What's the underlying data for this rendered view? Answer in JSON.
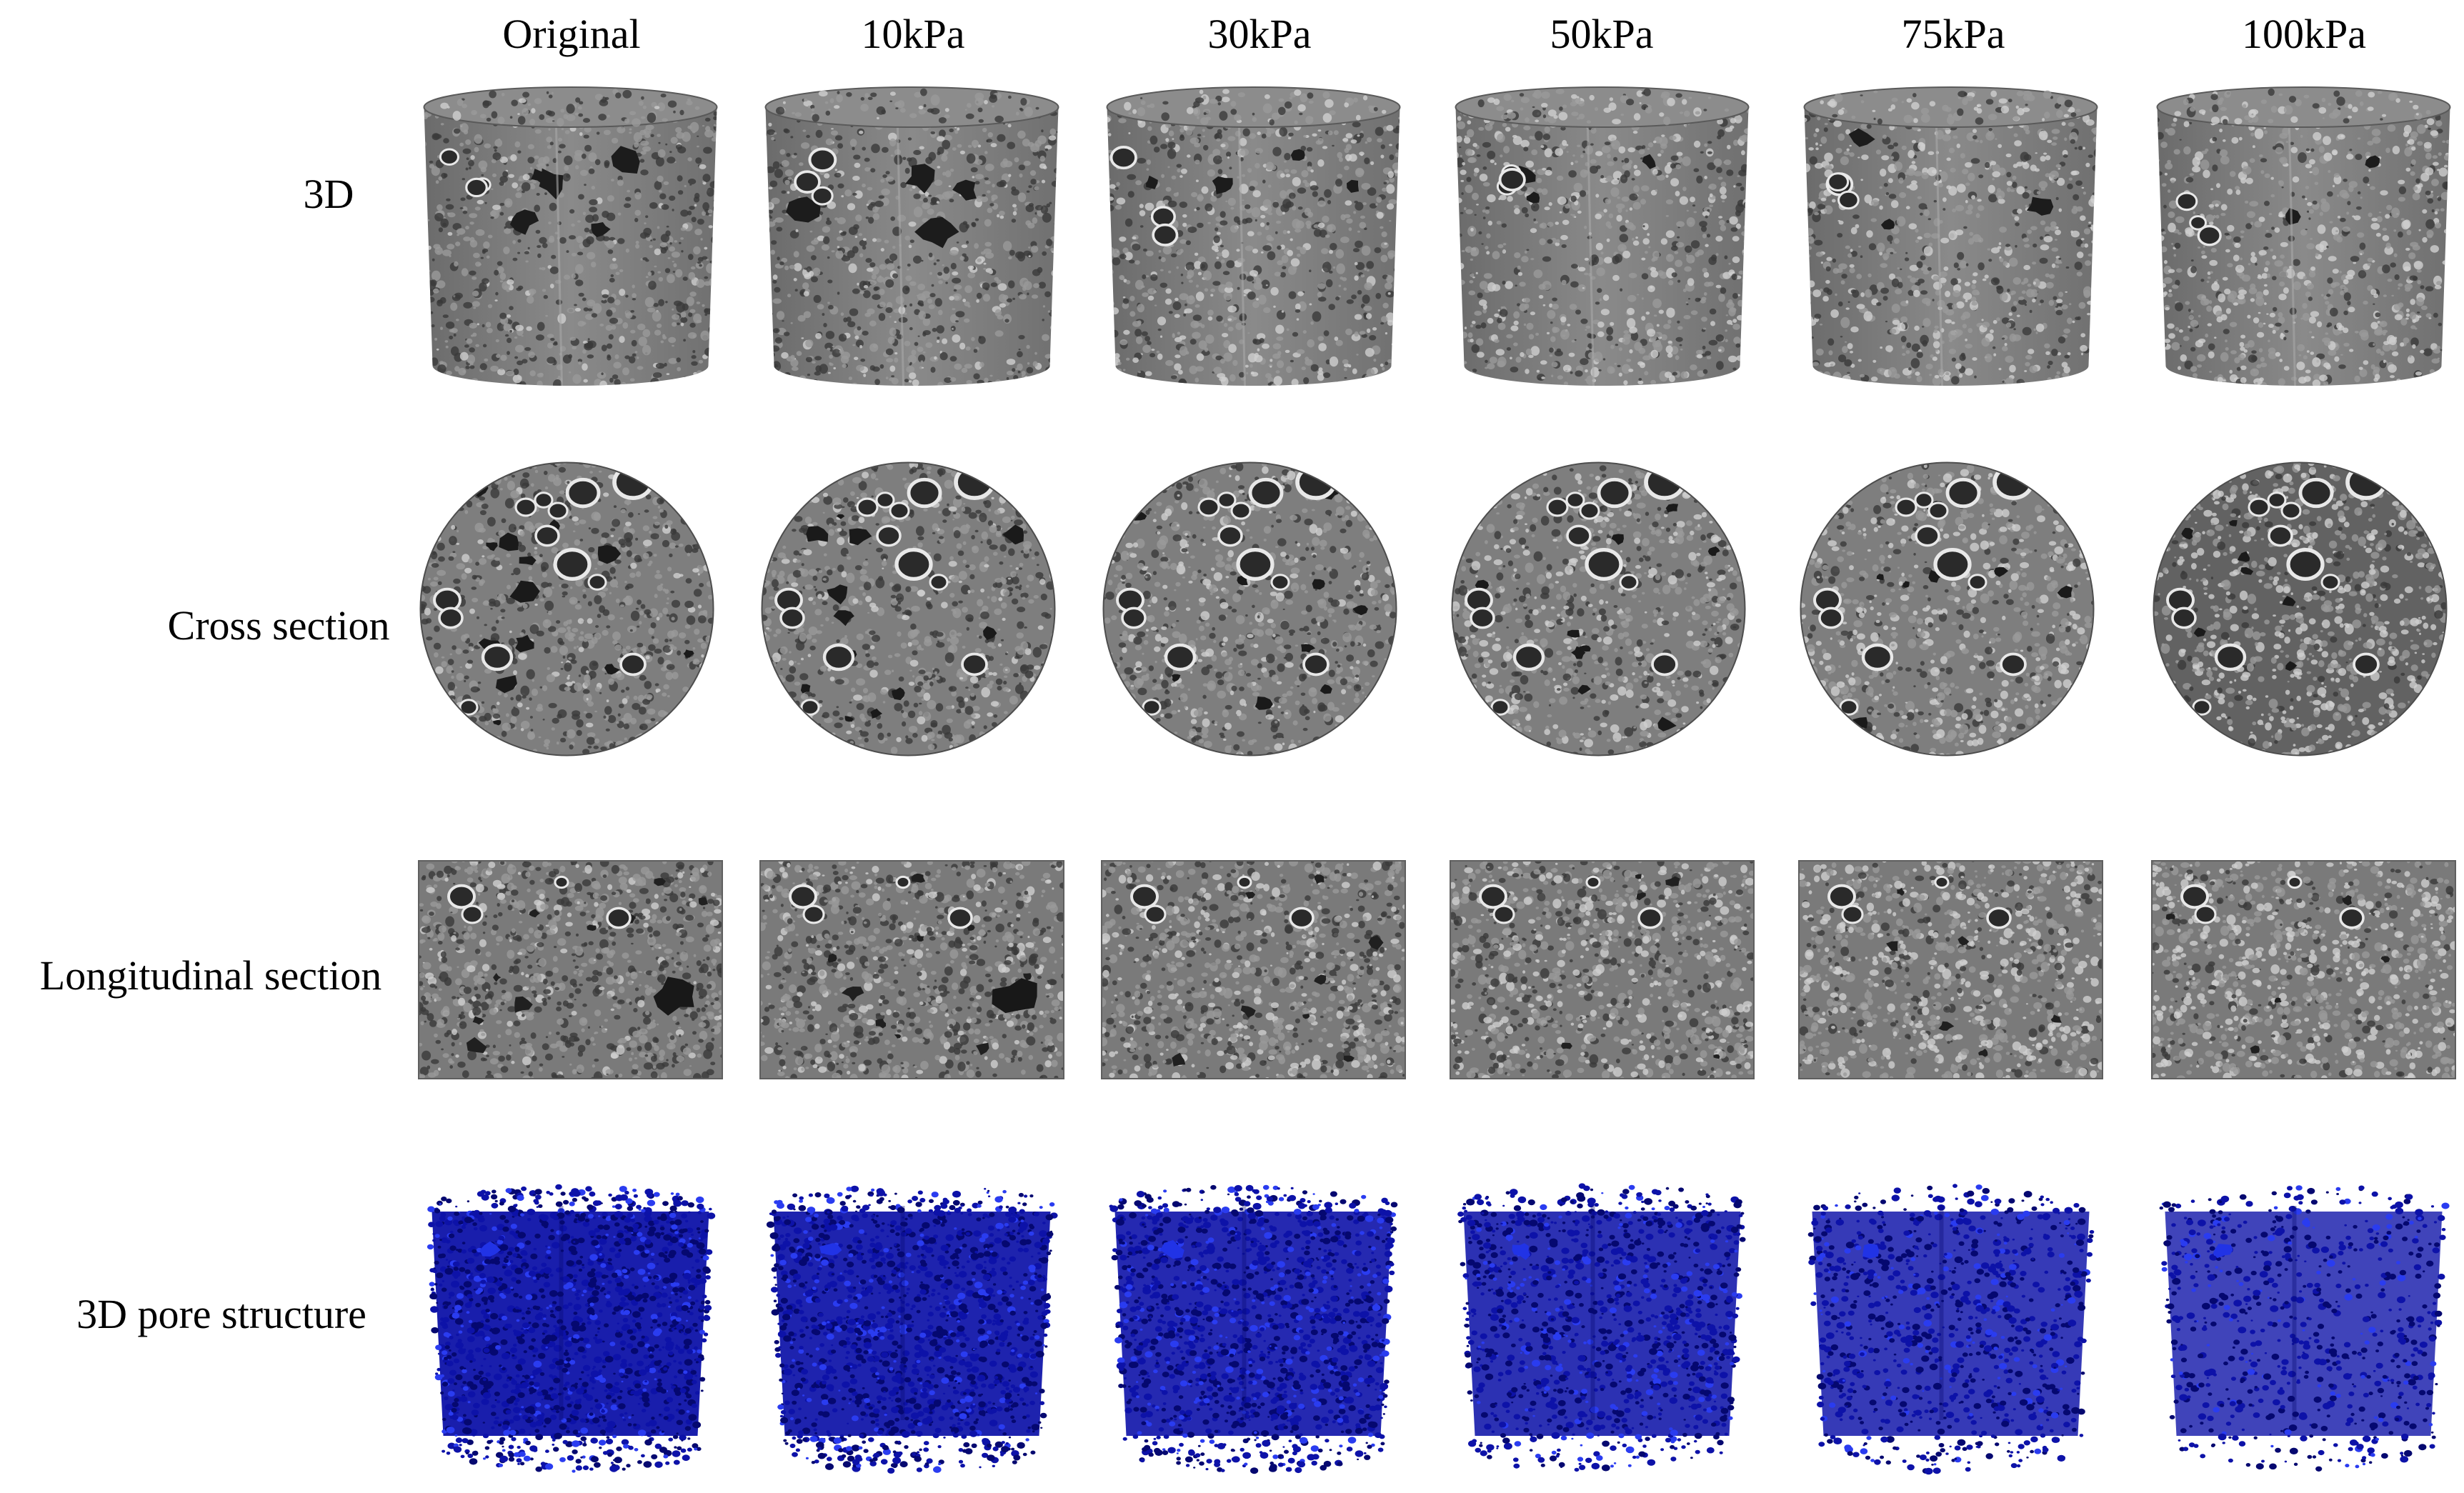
{
  "figure": {
    "columns": [
      "Original",
      "10kPa",
      "30kPa",
      "50kPa",
      "75kPa",
      "100kPa"
    ],
    "rows": [
      "3D",
      "Cross section",
      "Longitudinal section",
      "3D pore structure"
    ],
    "colors": {
      "background": "#ffffff",
      "ct_base": "#7d7d7d",
      "ct_dark": "#1e1e1e",
      "ct_light": "#e8e8e8",
      "pore_blue": "#0d12a8",
      "pore_dark_blue": "#050870"
    },
    "darkness": [
      1.0,
      0.85,
      0.7,
      0.55,
      0.45,
      0.35
    ],
    "pore_density": [
      1.0,
      0.95,
      0.88,
      0.8,
      0.7,
      0.6
    ]
  }
}
